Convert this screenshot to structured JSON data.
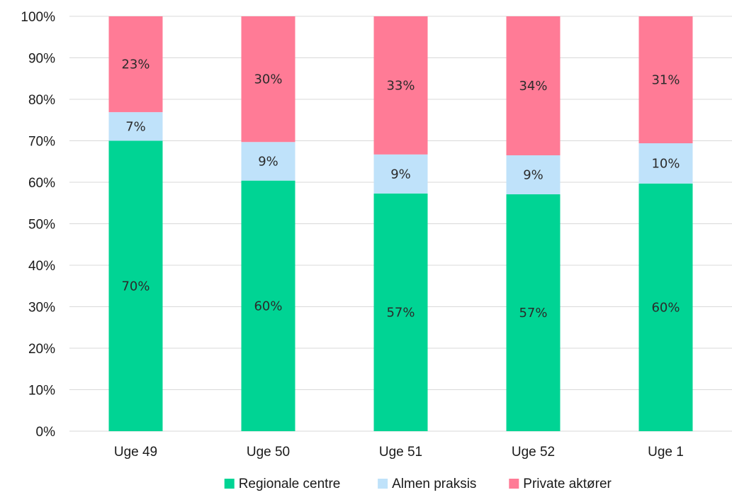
{
  "chart_data": {
    "type": "bar",
    "stacked": true,
    "title": "",
    "xlabel": "",
    "ylabel": "",
    "ylim": [
      0,
      100
    ],
    "y_ticks": [
      "0%",
      "10%",
      "20%",
      "30%",
      "40%",
      "50%",
      "60%",
      "70%",
      "80%",
      "90%",
      "100%"
    ],
    "categories": [
      "Uge 49",
      "Uge 50",
      "Uge 51",
      "Uge 52",
      "Uge 1"
    ],
    "series": [
      {
        "name": "Regionale centre",
        "color": "#00d494",
        "values": [
          70,
          60.4,
          57.3,
          57.1,
          59.7
        ],
        "labels": [
          "70%",
          "60%",
          "57%",
          "57%",
          "60%"
        ]
      },
      {
        "name": "Almen praksis",
        "color": "#bfe2fa",
        "values": [
          6.9,
          9.3,
          9.4,
          9.4,
          9.7
        ],
        "labels": [
          "7%",
          "9%",
          "9%",
          "9%",
          "10%"
        ]
      },
      {
        "name": "Private aktører",
        "color": "#ff7b96",
        "values": [
          23.1,
          30.3,
          33.3,
          33.5,
          30.6
        ],
        "labels": [
          "23%",
          "30%",
          "33%",
          "34%",
          "31%"
        ]
      }
    ],
    "grid": true,
    "legend": "bottom"
  }
}
